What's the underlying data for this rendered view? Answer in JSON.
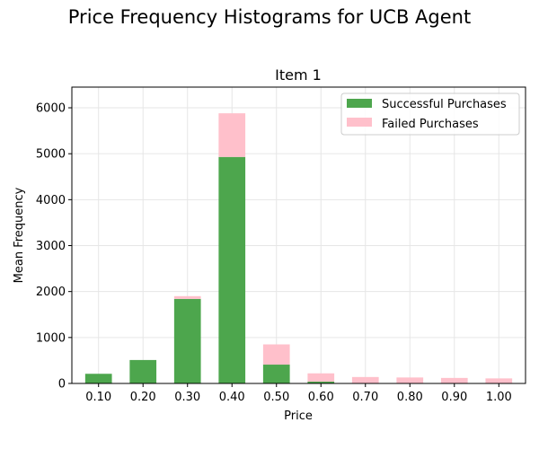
{
  "figure": {
    "suptitle": "Price Frequency Histograms for UCB Agent"
  },
  "colors": {
    "successful": "#4da64d",
    "failed": "#ffc0cb",
    "grid": "#e6e6e6",
    "axis": "#000000"
  },
  "chart_data": {
    "type": "bar",
    "stacked": true,
    "title": "Item 1",
    "xlabel": "Price",
    "ylabel": "Mean Frequency",
    "categories": [
      "0.10",
      "0.20",
      "0.30",
      "0.40",
      "0.50",
      "0.60",
      "0.70",
      "0.80",
      "0.90",
      "1.00"
    ],
    "series": [
      {
        "name": "Successful Purchases",
        "color": "#4da64d",
        "values": [
          210,
          510,
          1840,
          4930,
          410,
          40,
          0,
          0,
          0,
          0
        ]
      },
      {
        "name": "Failed Purchases",
        "color": "#ffc0cb",
        "values": [
          0,
          0,
          60,
          950,
          440,
          180,
          140,
          130,
          120,
          110
        ]
      }
    ],
    "ylim": [
      0,
      6450
    ],
    "yticks": [
      0,
      1000,
      2000,
      3000,
      4000,
      5000,
      6000
    ],
    "grid": true,
    "legend_position": "top-right"
  }
}
